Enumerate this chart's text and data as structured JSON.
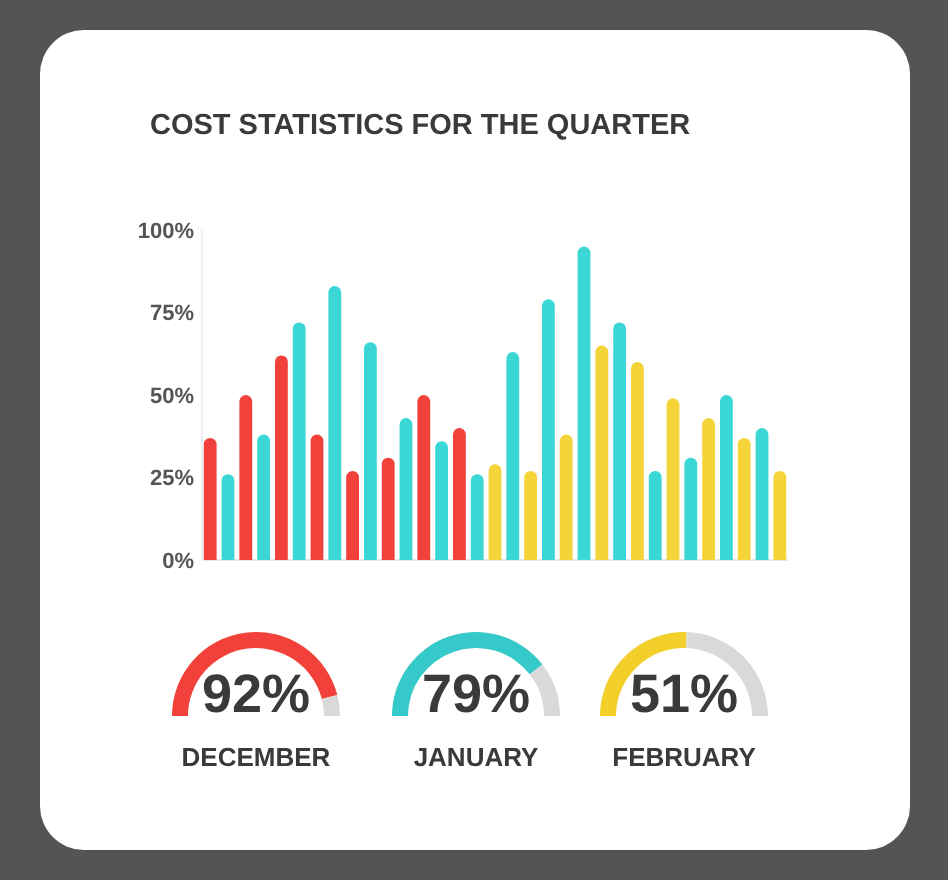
{
  "chart_data": [
    {
      "type": "bar",
      "title": "COST STATISTICS FOR THE QUARTER",
      "categories": [
        null,
        null,
        null,
        null,
        null,
        null,
        null,
        null,
        null,
        null,
        null,
        null,
        null,
        null,
        null,
        null,
        null,
        null,
        null,
        null,
        null,
        null,
        null,
        null,
        null,
        null,
        null,
        null,
        null,
        null,
        null,
        null,
        null
      ],
      "values": [
        37,
        26,
        50,
        38,
        62,
        72,
        38,
        83,
        27,
        66,
        31,
        43,
        50,
        36,
        40,
        26,
        29,
        63,
        27,
        79,
        38,
        95,
        65,
        72,
        60,
        27,
        49,
        31,
        43,
        50,
        37,
        40,
        27
      ],
      "colors": [
        "#f2413a",
        "#3bd6d6",
        "#f2413a",
        "#3bd6d6",
        "#f2413a",
        "#3bd6d6",
        "#f2413a",
        "#3bd6d6",
        "#f2413a",
        "#3bd6d6",
        "#f2413a",
        "#3bd6d6",
        "#f2413a",
        "#3bd6d6",
        "#f2413a",
        "#3bd6d6",
        "#f5d43a",
        "#3bd6d6",
        "#f5d43a",
        "#3bd6d6",
        "#f5d43a",
        "#3bd6d6",
        "#f5d43a",
        "#3bd6d6",
        "#f5d43a",
        "#3bd6d6",
        "#f5d43a",
        "#3bd6d6",
        "#f5d43a",
        "#3bd6d6",
        "#f5d43a",
        "#3bd6d6",
        "#f5d43a"
      ],
      "ylim": [
        0,
        100
      ],
      "yticks": [
        {
          "value": 0,
          "label": "0%"
        },
        {
          "value": 25,
          "label": "25%"
        },
        {
          "value": 50,
          "label": "50%"
        },
        {
          "value": 75,
          "label": "75%"
        },
        {
          "value": 100,
          "label": "100%"
        }
      ]
    },
    {
      "type": "donut",
      "title": "DECEMBER",
      "categories": [
        null,
        null
      ],
      "values": [
        92,
        8
      ],
      "colors": [
        "#f2413a",
        "#d9d9d9"
      ],
      "value_labels": [
        "92%",
        null
      ]
    },
    {
      "type": "donut",
      "title": "JANUARY",
      "categories": [
        null,
        null
      ],
      "values": [
        79,
        21
      ],
      "colors": [
        "#36c9c9",
        "#d9d9d9"
      ],
      "value_labels": [
        "79%",
        null
      ]
    },
    {
      "type": "donut",
      "title": "FEBRUARY",
      "categories": [
        null,
        null
      ],
      "values": [
        51,
        49
      ],
      "colors": [
        "#f2cf2a",
        "#d9d9d9"
      ],
      "value_labels": [
        "51%",
        null
      ]
    }
  ]
}
